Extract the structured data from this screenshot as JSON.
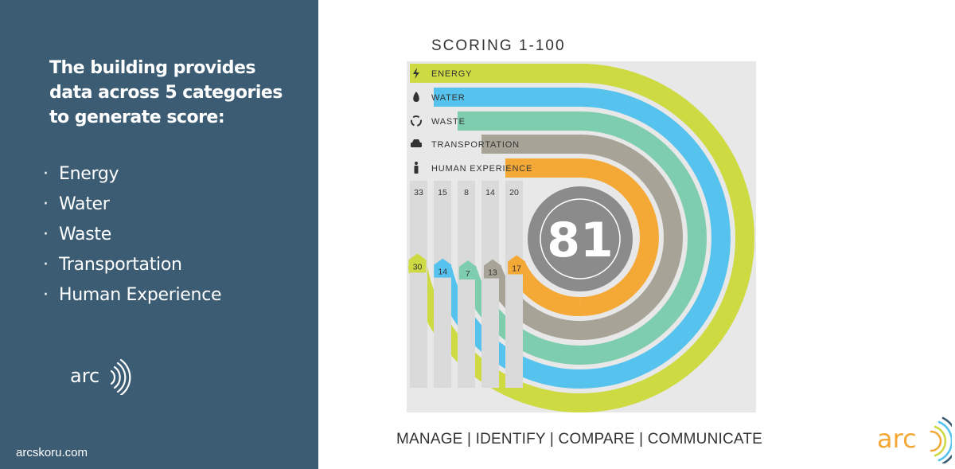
{
  "sidebar": {
    "intro": "The building provides data across 5 categories to generate score:",
    "bullet": "·",
    "items": [
      "Energy",
      "Water",
      "Waste",
      "Transportation",
      "Human Experience"
    ],
    "logo_text": "arc",
    "website": "arcskoru.com"
  },
  "chart": {
    "title": "SCORING 1-100",
    "total_score": "81",
    "background_color": "#e8e8e8",
    "center_color": "#8b8b8b",
    "categories": [
      {
        "label": "ENERGY",
        "icon": "lightning-bolt-icon",
        "color": "#cdda41",
        "max": "33",
        "score": "30"
      },
      {
        "label": "WATER",
        "icon": "water-drop-icon",
        "color": "#56c3ee",
        "max": "15",
        "score": "14"
      },
      {
        "label": "WASTE",
        "icon": "recycle-icon",
        "color": "#7fcdaf",
        "max": "8",
        "score": "7"
      },
      {
        "label": "TRANSPORTATION",
        "icon": "car-icon",
        "color": "#a7a397",
        "max": "14",
        "score": "13"
      },
      {
        "label": "HUMAN EXPERIENCE",
        "icon": "person-icon",
        "color": "#f4a937",
        "max": "20",
        "score": "17"
      }
    ]
  },
  "tagline": "MANAGE | IDENTIFY | COMPARE | COMMUNICATE",
  "logo_right_text": "arc",
  "colors": {
    "sidebar_bg": "#3b5c73",
    "logo_orange": "#f4a937",
    "logo_green": "#cdda41",
    "logo_blue": "#56c3ee"
  }
}
